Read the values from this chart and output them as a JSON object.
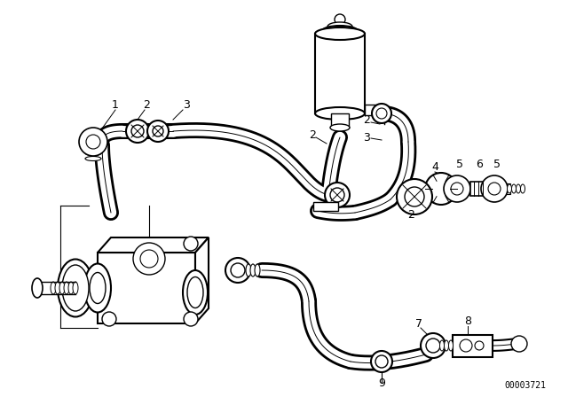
{
  "background_color": "#ffffff",
  "line_color": "#000000",
  "fig_width": 6.4,
  "fig_height": 4.48,
  "dpi": 100,
  "diagram_id": "00003721"
}
